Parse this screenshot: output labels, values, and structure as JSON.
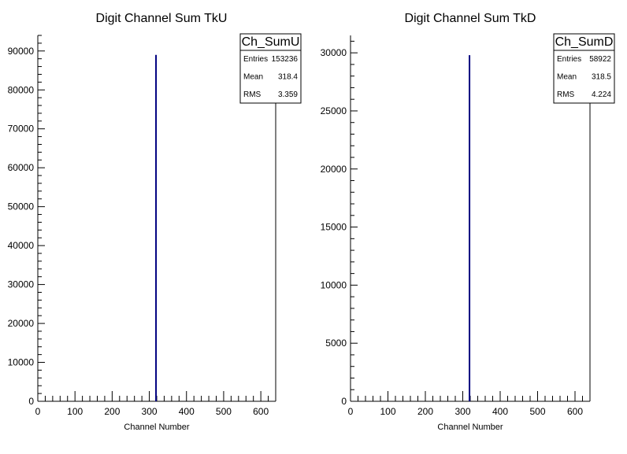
{
  "chart_data": [
    {
      "type": "bar",
      "title": "Digit Channel Sum TkU",
      "xlabel": "Channel Number",
      "ylabel": "",
      "xlim": [
        0,
        640
      ],
      "ylim": [
        0,
        94000
      ],
      "x_ticks": [
        0,
        100,
        200,
        300,
        400,
        500,
        600
      ],
      "y_ticks": [
        0,
        10000,
        20000,
        30000,
        40000,
        50000,
        60000,
        70000,
        80000,
        90000
      ],
      "x": [
        318
      ],
      "values": [
        89000
      ],
      "bar_color": "#000080",
      "stats": {
        "name": "Ch_SumU",
        "rows": [
          {
            "label": "Entries",
            "value": "153236"
          },
          {
            "label": "Mean",
            "value": "318.4"
          },
          {
            "label": "RMS",
            "value": "3.359"
          }
        ]
      },
      "grid": false,
      "legend": "top-right"
    },
    {
      "type": "bar",
      "title": "Digit Channel Sum TkD",
      "xlabel": "Channel Number",
      "ylabel": "",
      "xlim": [
        0,
        640
      ],
      "ylim": [
        0,
        31500
      ],
      "x_ticks": [
        0,
        100,
        200,
        300,
        400,
        500,
        600
      ],
      "y_ticks": [
        0,
        5000,
        10000,
        15000,
        20000,
        25000,
        30000
      ],
      "x": [
        318
      ],
      "values": [
        29800
      ],
      "bar_color": "#000080",
      "stats": {
        "name": "Ch_SumD",
        "rows": [
          {
            "label": "Entries",
            "value": "58922"
          },
          {
            "label": "Mean",
            "value": "318.5"
          },
          {
            "label": "RMS",
            "value": "4.224"
          }
        ]
      },
      "grid": false,
      "legend": "top-right"
    }
  ]
}
